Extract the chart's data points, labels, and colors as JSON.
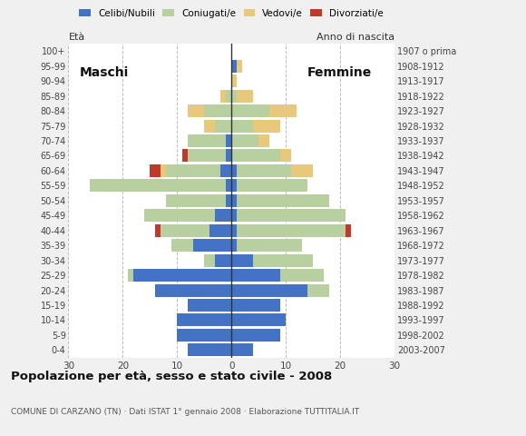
{
  "age_groups": [
    "0-4",
    "5-9",
    "10-14",
    "15-19",
    "20-24",
    "25-29",
    "30-34",
    "35-39",
    "40-44",
    "45-49",
    "50-54",
    "55-59",
    "60-64",
    "65-69",
    "70-74",
    "75-79",
    "80-84",
    "85-89",
    "90-94",
    "95-99",
    "100+"
  ],
  "birth_years": [
    "2003-2007",
    "1998-2002",
    "1993-1997",
    "1988-1992",
    "1983-1987",
    "1978-1982",
    "1973-1977",
    "1968-1972",
    "1963-1967",
    "1958-1962",
    "1953-1957",
    "1948-1952",
    "1943-1947",
    "1938-1942",
    "1933-1937",
    "1928-1932",
    "1923-1927",
    "1918-1922",
    "1913-1917",
    "1908-1912",
    "1907 o prima"
  ],
  "colors": {
    "celibe": "#4472c4",
    "coniugato": "#b8cfa0",
    "vedovo": "#e8c87a",
    "divorziato": "#c0392b"
  },
  "males": {
    "celibe": [
      8,
      10,
      10,
      8,
      14,
      18,
      3,
      7,
      4,
      3,
      1,
      1,
      2,
      1,
      1,
      0,
      0,
      0,
      0,
      0,
      0
    ],
    "coniugato": [
      0,
      0,
      0,
      0,
      0,
      1,
      2,
      4,
      9,
      13,
      11,
      25,
      10,
      7,
      7,
      3,
      5,
      1,
      0,
      0,
      0
    ],
    "vedovo": [
      0,
      0,
      0,
      0,
      0,
      0,
      0,
      0,
      0,
      0,
      0,
      0,
      1,
      0,
      0,
      2,
      3,
      1,
      0,
      0,
      0
    ],
    "divorziato": [
      0,
      0,
      0,
      0,
      0,
      0,
      0,
      0,
      1,
      0,
      0,
      0,
      2,
      1,
      0,
      0,
      0,
      0,
      0,
      0,
      0
    ]
  },
  "females": {
    "celibe": [
      4,
      9,
      10,
      9,
      14,
      9,
      4,
      1,
      1,
      1,
      1,
      1,
      1,
      0,
      0,
      0,
      0,
      0,
      0,
      1,
      0
    ],
    "coniugato": [
      0,
      0,
      0,
      0,
      4,
      8,
      11,
      12,
      20,
      20,
      17,
      13,
      10,
      9,
      5,
      4,
      7,
      1,
      0,
      0,
      0
    ],
    "vedovo": [
      0,
      0,
      0,
      0,
      0,
      0,
      0,
      0,
      0,
      0,
      0,
      0,
      4,
      2,
      2,
      5,
      5,
      3,
      1,
      1,
      0
    ],
    "divorziato": [
      0,
      0,
      0,
      0,
      0,
      0,
      0,
      0,
      1,
      0,
      0,
      0,
      0,
      0,
      0,
      0,
      0,
      0,
      0,
      0,
      0
    ]
  },
  "title": "Popolazione per età, sesso e stato civile - 2008",
  "subtitle": "COMUNE DI CARZANO (TN) · Dati ISTAT 1° gennaio 2008 · Elaborazione TUTTITALIA.IT",
  "label_eta": "Età",
  "label_anno": "Anno di nascita",
  "label_maschi": "Maschi",
  "label_femmine": "Femmine",
  "xlim": 30,
  "background_color": "#f0f0f0",
  "plot_bg": "#ffffff"
}
